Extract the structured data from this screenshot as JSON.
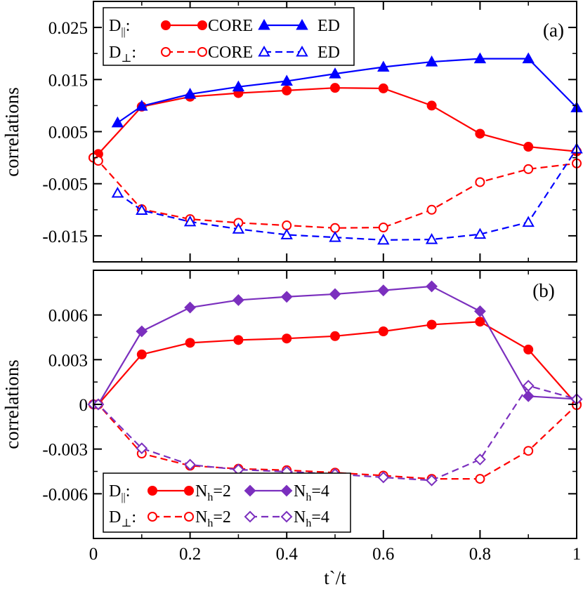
{
  "chart_data": [
    {
      "id": "panel-a",
      "type": "line",
      "panel_label": "(a)",
      "ylabel": "correlations",
      "xlim": [
        0,
        1
      ],
      "ylim": [
        -0.02,
        0.03
      ],
      "yticks": [
        -0.015,
        -0.005,
        0.005,
        0.015,
        0.025
      ],
      "ytick_labels": [
        "-0.015",
        "-0.005",
        "0.005",
        "0.015",
        "0.025"
      ],
      "xticks": [
        0,
        0.2,
        0.4,
        0.6,
        0.8,
        1
      ],
      "legend": {
        "placement": "top-left",
        "row_labels": [
          {
            "main": "D",
            "sub": "||",
            "suffix": ":"
          },
          {
            "main": "D",
            "sub": "⊥",
            "suffix": ":"
          }
        ],
        "entries": [
          {
            "series": "a-par-core",
            "label": "CORE"
          },
          {
            "series": "a-par-ed",
            "label": "ED"
          },
          {
            "series": "a-perp-core",
            "label": "CORE"
          },
          {
            "series": "a-perp-ed",
            "label": "ED"
          }
        ]
      },
      "series": [
        {
          "id": "a-par-core",
          "name": "D|| CORE",
          "color": "#ff0000",
          "dashed": false,
          "marker": "circle",
          "filled": true,
          "x": [
            0,
            0.01,
            0.1,
            0.2,
            0.3,
            0.4,
            0.5,
            0.6,
            0.7,
            0.8,
            0.9,
            1.0
          ],
          "y": [
            0.0,
            0.0007,
            0.0098,
            0.0117,
            0.0124,
            0.0129,
            0.0134,
            0.0133,
            0.01,
            0.0046,
            0.0021,
            0.0012
          ]
        },
        {
          "id": "a-par-ed",
          "name": "D|| ED",
          "color": "#0000ff",
          "dashed": false,
          "marker": "triangle",
          "filled": true,
          "x": [
            0.05,
            0.1,
            0.2,
            0.3,
            0.4,
            0.5,
            0.6,
            0.7,
            0.8,
            0.9,
            1.0
          ],
          "y": [
            0.0067,
            0.0099,
            0.0122,
            0.0136,
            0.0147,
            0.0161,
            0.0174,
            0.0184,
            0.019,
            0.019,
            0.0096
          ]
        },
        {
          "id": "a-perp-core",
          "name": "D⊥ CORE",
          "color": "#ff0000",
          "dashed": true,
          "marker": "circle",
          "filled": false,
          "x": [
            0,
            0.01,
            0.1,
            0.2,
            0.3,
            0.4,
            0.5,
            0.6,
            0.7,
            0.8,
            0.9,
            1.0
          ],
          "y": [
            0.0,
            -0.0006,
            -0.0099,
            -0.0118,
            -0.0125,
            -0.013,
            -0.0135,
            -0.0134,
            -0.01,
            -0.0047,
            -0.0022,
            -0.0011
          ]
        },
        {
          "id": "a-perp-ed",
          "name": "D⊥ ED",
          "color": "#0000ff",
          "dashed": true,
          "marker": "triangle",
          "filled": false,
          "x": [
            0.05,
            0.1,
            0.2,
            0.3,
            0.4,
            0.5,
            0.6,
            0.7,
            0.8,
            0.9,
            1.0
          ],
          "y": [
            -0.0068,
            -0.0101,
            -0.0123,
            -0.0137,
            -0.0148,
            -0.0153,
            -0.0158,
            -0.0157,
            -0.0147,
            -0.0124,
            0.0017
          ]
        }
      ]
    },
    {
      "id": "panel-b",
      "type": "line",
      "panel_label": "(b)",
      "ylabel": "correlations",
      "xlabel": "t`/t",
      "xlim": [
        0,
        1
      ],
      "ylim": [
        -0.009,
        0.009
      ],
      "yticks": [
        -0.006,
        -0.003,
        0,
        0.003,
        0.006
      ],
      "ytick_labels": [
        "-0.006",
        "-0.003",
        "0",
        "0.003",
        "0.006"
      ],
      "xticks": [
        0,
        0.2,
        0.4,
        0.6,
        0.8,
        1
      ],
      "xtick_labels": [
        "0",
        "0.2",
        "0.4",
        "0.6",
        "0.8",
        "1"
      ],
      "legend": {
        "placement": "bottom-left",
        "row_labels": [
          {
            "main": "D",
            "sub": "||",
            "suffix": ":"
          },
          {
            "main": "D",
            "sub": "⊥",
            "suffix": ":"
          }
        ],
        "entries": [
          {
            "series": "b-par-2",
            "main": "N",
            "sub": "h",
            "tail": "=2"
          },
          {
            "series": "b-par-4",
            "main": "N",
            "sub": "h",
            "tail": "=4"
          },
          {
            "series": "b-perp-2",
            "main": "N",
            "sub": "h",
            "tail": "=2"
          },
          {
            "series": "b-perp-4",
            "main": "N",
            "sub": "h",
            "tail": "=4"
          }
        ]
      },
      "series": [
        {
          "id": "b-par-2",
          "name": "D|| Nh=2",
          "color": "#ff0000",
          "dashed": false,
          "marker": "circle",
          "filled": true,
          "x": [
            0,
            0.01,
            0.1,
            0.2,
            0.3,
            0.4,
            0.5,
            0.6,
            0.7,
            0.8,
            0.9,
            1.0
          ],
          "y": [
            0.0,
            0.0,
            0.00335,
            0.00413,
            0.00432,
            0.00442,
            0.00458,
            0.0049,
            0.00535,
            0.00555,
            0.00368,
            0.0
          ]
        },
        {
          "id": "b-par-4",
          "name": "D|| Nh=4",
          "color": "#7b2fbe",
          "dashed": false,
          "marker": "diamond",
          "filled": true,
          "x": [
            0,
            0.01,
            0.1,
            0.2,
            0.3,
            0.4,
            0.5,
            0.6,
            0.7,
            0.8,
            0.9,
            1.0
          ],
          "y": [
            0.0,
            0.0,
            0.0049,
            0.0065,
            0.007,
            0.00722,
            0.0074,
            0.00765,
            0.00792,
            0.00625,
            0.00055,
            0.00035
          ]
        },
        {
          "id": "b-perp-2",
          "name": "D⊥ Nh=2",
          "color": "#ff0000",
          "dashed": true,
          "marker": "circle",
          "filled": false,
          "x": [
            0,
            0.01,
            0.1,
            0.2,
            0.3,
            0.4,
            0.5,
            0.6,
            0.7,
            0.8,
            0.9,
            1.0
          ],
          "y": [
            0.0,
            0.0,
            -0.0033,
            -0.00412,
            -0.00432,
            -0.00442,
            -0.00458,
            -0.00478,
            -0.005,
            -0.005,
            -0.00312,
            -5e-05
          ]
        },
        {
          "id": "b-perp-4",
          "name": "D⊥ Nh=4",
          "color": "#7b2fbe",
          "dashed": true,
          "marker": "diamond",
          "filled": false,
          "x": [
            0,
            0.01,
            0.1,
            0.2,
            0.3,
            0.4,
            0.5,
            0.6,
            0.7,
            0.8,
            0.9,
            1.0
          ],
          "y": [
            0.0,
            0.0,
            -0.00295,
            -0.00405,
            -0.00438,
            -0.00452,
            -0.00468,
            -0.0049,
            -0.0051,
            -0.0037,
            0.00125,
            0.00035
          ]
        }
      ]
    }
  ]
}
